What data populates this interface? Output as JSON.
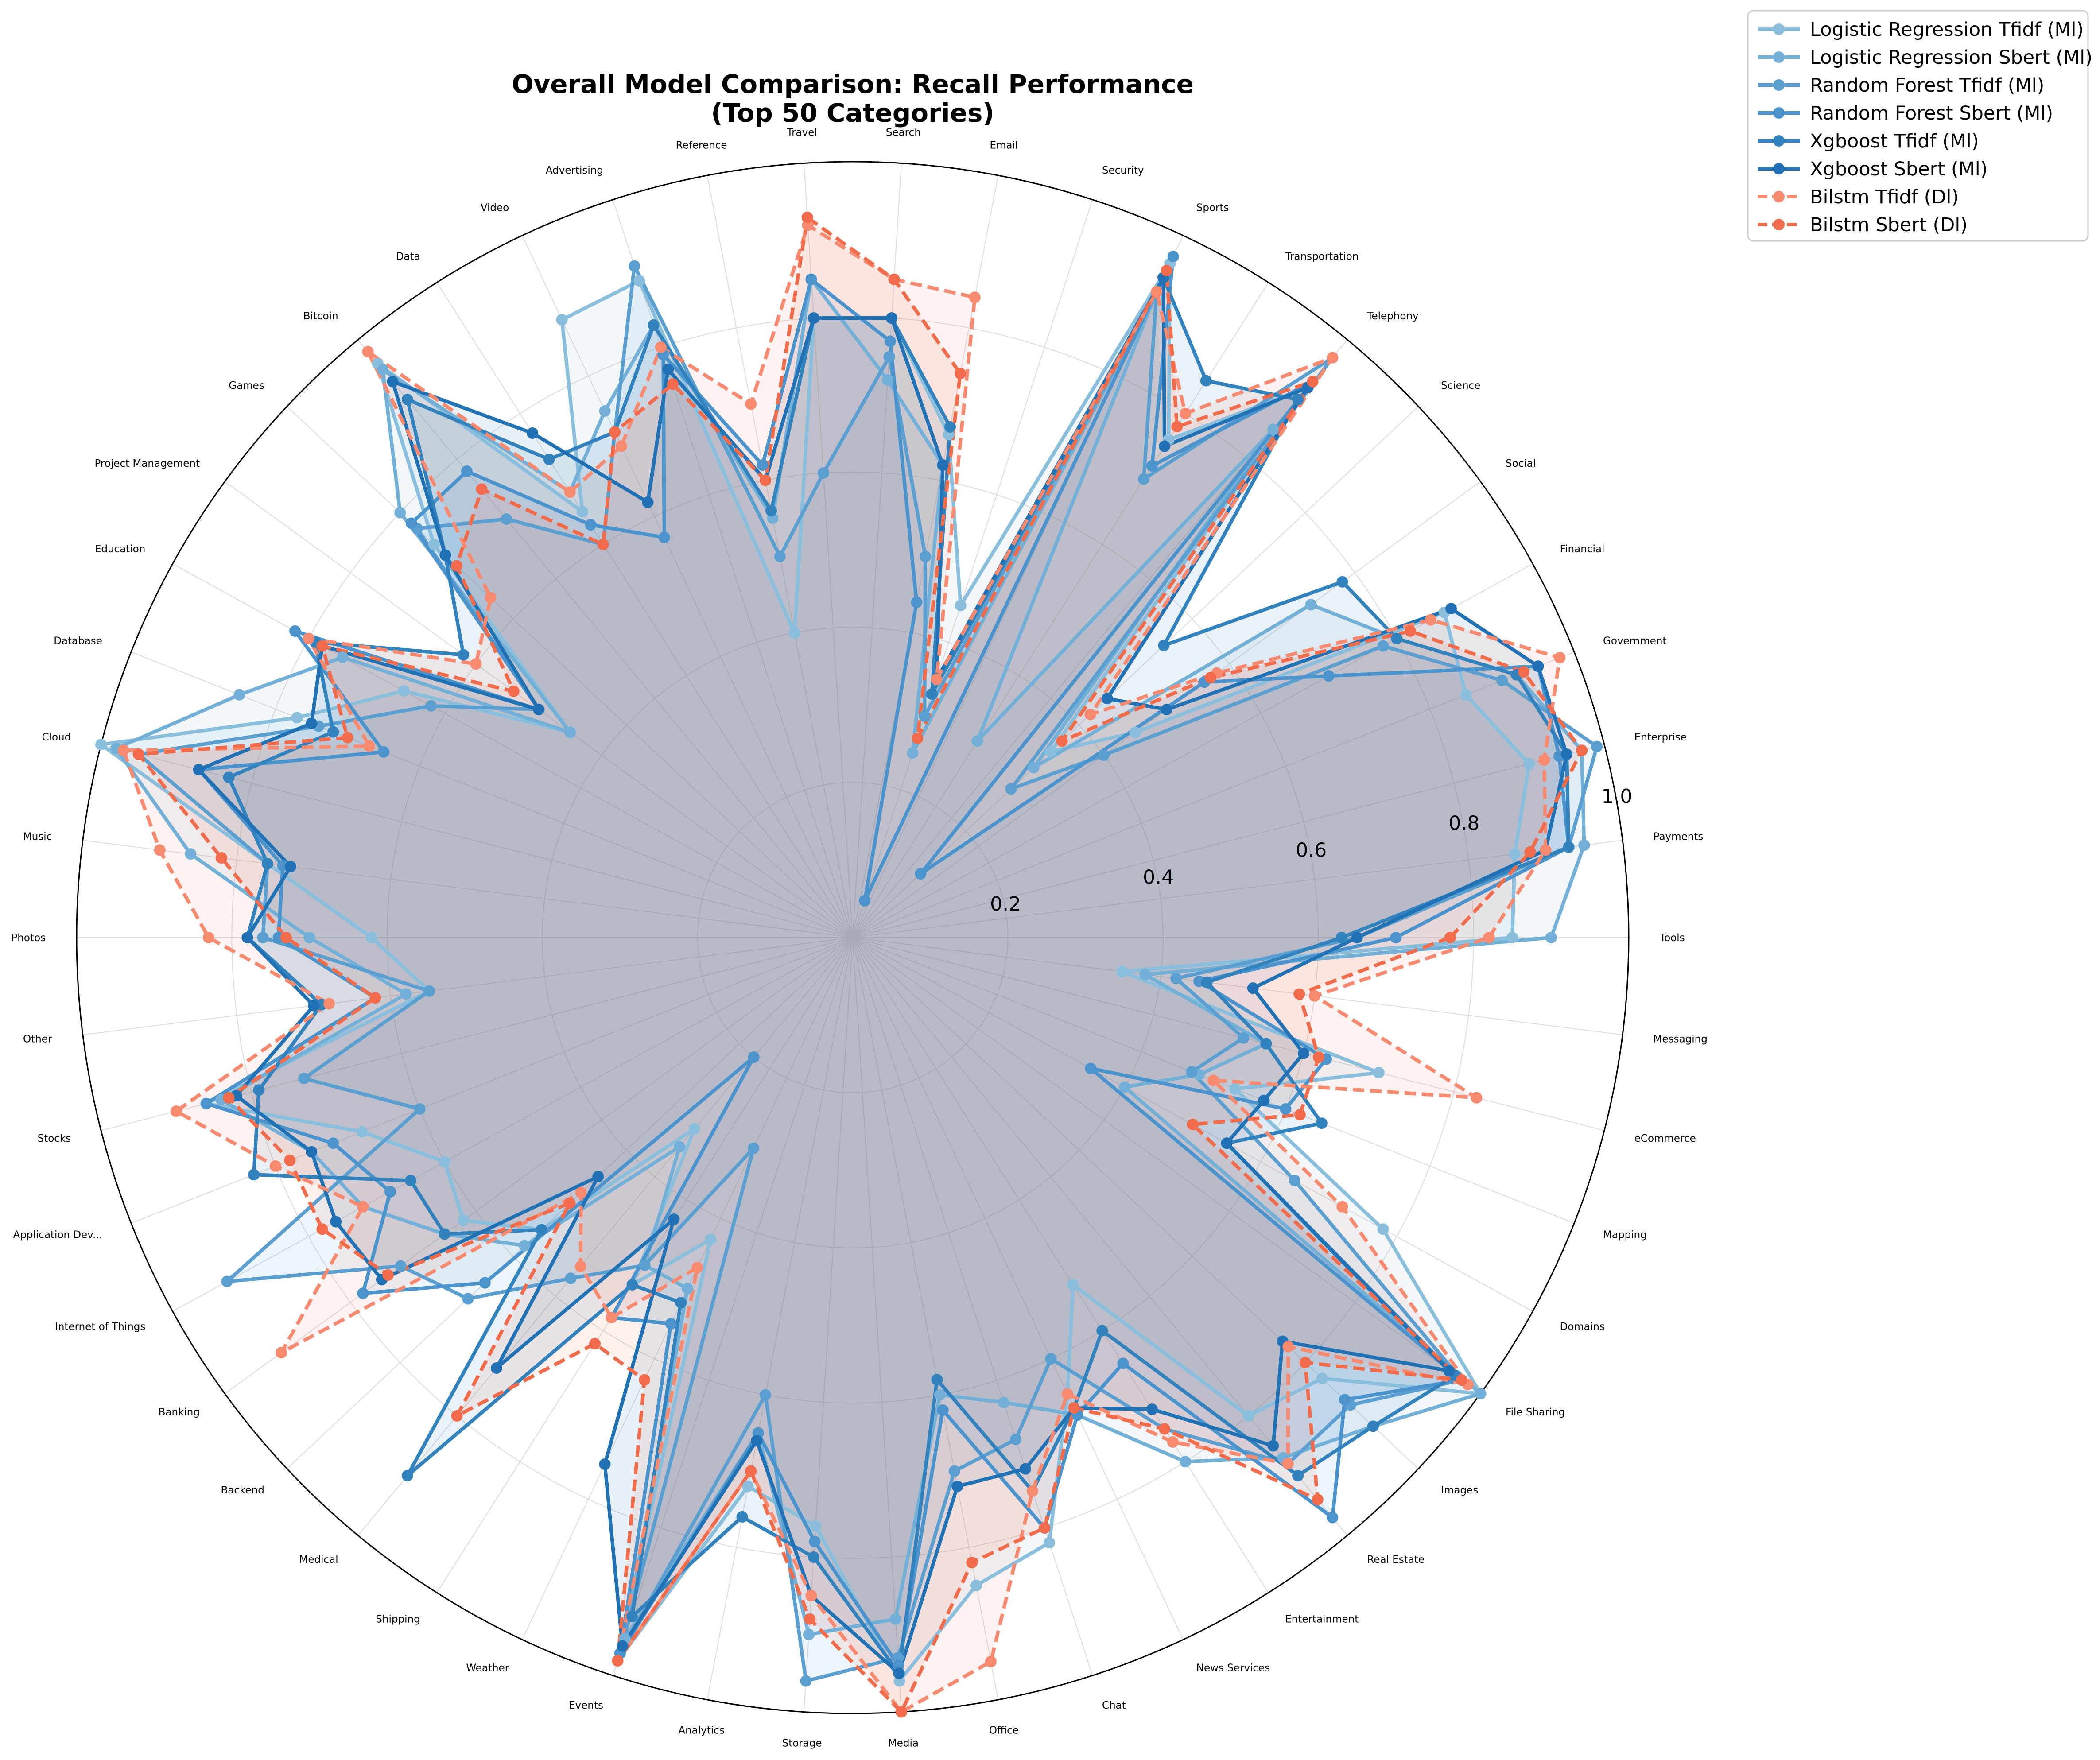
{
  "chart_data": {
    "type": "radar",
    "title": "Overall Model Comparison: Recall Performance",
    "subtitle": "(Top 50 Categories)",
    "categories": [
      "Tools",
      "Payments",
      "Enterprise",
      "Government",
      "Financial",
      "Social",
      "Science",
      "Telephony",
      "Transportation",
      "Sports",
      "Security",
      "Email",
      "Search",
      "Travel",
      "Reference",
      "Advertising",
      "Video",
      "Data",
      "Bitcoin",
      "Games",
      "Project Management",
      "Education",
      "Database",
      "Cloud",
      "Music",
      "Photos",
      "Other",
      "Stocks",
      "Application Dev...",
      "Internet of Things",
      "Banking",
      "Backend",
      "Medical",
      "Shipping",
      "Weather",
      "Events",
      "Analytics",
      "Storage",
      "Media",
      "Office",
      "Chat",
      "News Services",
      "Entertainment",
      "Real Estate",
      "Images",
      "File Sharing",
      "Domains",
      "Mapping",
      "eCommerce",
      "Messaging"
    ],
    "r_ticks": [
      "0.2",
      "0.4",
      "0.6",
      "0.8",
      "1.0"
    ],
    "rlim": [
      0,
      1.0
    ],
    "grid": true,
    "legend_position": "top-right outside",
    "series": [
      {
        "name": "Logistic Regression Tfidf (Ml)",
        "color": "#89bedc",
        "dashed": false,
        "values": [
          0.85,
          0.86,
          0.9,
          0.85,
          0.87,
          0.45,
          0.35,
          0.92,
          0.76,
          0.96,
          0.45,
          0.66,
          0.8,
          0.8,
          0.4,
          0.89,
          0.88,
          0.65,
          0.96,
          0.74,
          0.45,
          0.66,
          0.77,
          1.0,
          0.76,
          0.62,
          0.55,
          0.86,
          0.68,
          0.6,
          0.62,
          0.55,
          0.32,
          0.53,
          0.43,
          0.98,
          0.72,
          0.76,
          0.96,
          0.85,
          0.82,
          0.65,
          0.53,
          0.8,
          0.83,
          1.0,
          0.78,
          0.53,
          0.7,
          0.35
        ]
      },
      {
        "name": "Logistic Regression Sbert (Ml)",
        "color": "#73b0d8",
        "dashed": false,
        "values": [
          0.9,
          0.95,
          0.97,
          0.92,
          0.8,
          0.73,
          0.32,
          0.85,
          0.3,
          0.92,
          0.25,
          0.62,
          0.72,
          0.85,
          0.55,
          0.83,
          0.75,
          0.68,
          0.95,
          0.8,
          0.45,
          0.75,
          0.85,
          0.98,
          0.86,
          0.7,
          0.58,
          0.84,
          0.75,
          0.72,
          0.65,
          0.58,
          0.35,
          0.5,
          0.5,
          0.95,
          0.65,
          0.9,
          0.88,
          0.6,
          0.63,
          0.68,
          0.8,
          0.87,
          0.92,
          1.0,
          0.4,
          0.48,
          0.55,
          0.38
        ]
      },
      {
        "name": "Random Forest Tfidf (Ml)",
        "color": "#5b9fd1",
        "dashed": false,
        "values": [
          0.65,
          0.93,
          0.99,
          0.9,
          0.78,
          0.4,
          0.28,
          0.97,
          0.7,
          0.92,
          0.3,
          0.5,
          0.75,
          0.6,
          0.5,
          0.91,
          0.72,
          0.6,
          0.7,
          0.77,
          0.5,
          0.62,
          0.74,
          0.95,
          0.76,
          0.76,
          0.55,
          0.73,
          0.6,
          0.92,
          0.72,
          0.68,
          0.57,
          0.5,
          0.3,
          0.97,
          0.6,
          0.96,
          0.93,
          0.7,
          0.68,
          0.6,
          0.75,
          0.88,
          0.88,
          0.97,
          0.65,
          0.47,
          0.52,
          0.42
        ]
      },
      {
        "name": "Random Forest Sbert (Ml)",
        "color": "#4a93cc",
        "dashed": false,
        "values": [
          0.7,
          0.93,
          0.94,
          0.95,
          0.7,
          0.56,
          0.12,
          0.93,
          0.72,
          0.97,
          0.05,
          0.44,
          0.77,
          0.85,
          0.62,
          0.79,
          0.57,
          0.63,
          0.78,
          0.78,
          0.5,
          0.82,
          0.65,
          0.87,
          0.74,
          0.74,
          0.62,
          0.86,
          0.72,
          0.68,
          0.78,
          0.65,
          0.2,
          0.58,
          0.55,
          0.97,
          0.65,
          0.78,
          0.94,
          0.62,
          0.8,
          0.68,
          0.65,
          0.97,
          0.87,
          0.97,
          0.35,
          0.6,
          0.63,
          0.45
        ]
      },
      {
        "name": "Xgboost Tfidf (Ml)",
        "color": "#3182bd",
        "dashed": false,
        "values": [
          0.63,
          0.93,
          0.95,
          0.92,
          0.8,
          0.78,
          0.55,
          0.9,
          0.85,
          0.94,
          0.33,
          0.67,
          0.8,
          0.8,
          0.56,
          0.83,
          0.72,
          0.73,
          0.9,
          0.72,
          0.62,
          0.79,
          0.72,
          0.83,
          0.76,
          0.78,
          0.69,
          0.79,
          0.83,
          0.65,
          0.65,
          0.55,
          0.9,
          0.53,
          0.52,
          0.92,
          0.76,
          0.8,
          0.95,
          0.58,
          0.75,
          0.67,
          0.6,
          0.9,
          0.92,
          0.96,
          0.55,
          0.65,
          0.55,
          0.46
        ]
      },
      {
        "name": "Xgboost Sbert (Ml)",
        "color": "#2171b5",
        "dashed": false,
        "values": [
          0.65,
          0.9,
          0.95,
          0.95,
          0.88,
          0.5,
          0.45,
          0.92,
          0.75,
          0.94,
          0.35,
          0.62,
          0.8,
          0.8,
          0.6,
          0.77,
          0.62,
          0.77,
          0.93,
          0.72,
          0.5,
          0.78,
          0.75,
          0.87,
          0.73,
          0.78,
          0.7,
          0.82,
          0.75,
          0.76,
          0.75,
          0.45,
          0.72,
          0.43,
          0.75,
          0.96,
          0.66,
          0.85,
          0.95,
          0.72,
          0.72,
          0.67,
          0.72,
          0.85,
          0.76,
          0.95,
          0.55,
          0.57,
          0.6,
          0.52
        ]
      },
      {
        "name": "Bilstm Tfidf (Dl)",
        "color": "#f9896f",
        "dashed": true,
        "values": [
          0.82,
          0.9,
          0.92,
          0.98,
          0.85,
          0.58,
          0.42,
          0.97,
          0.8,
          0.92,
          0.35,
          0.84,
          0.85,
          0.92,
          0.7,
          0.8,
          0.7,
          0.68,
          0.98,
          0.64,
          0.6,
          0.8,
          0.67,
          0.97,
          0.9,
          0.83,
          0.68,
          0.9,
          0.8,
          0.72,
          0.91,
          0.48,
          0.55,
          0.58,
          0.47,
          0.98,
          0.7,
          0.85,
          1.0,
          0.95,
          0.75,
          0.65,
          0.77,
          0.88,
          0.77,
          0.98,
          0.72,
          0.5,
          0.83,
          0.6
        ]
      },
      {
        "name": "Bilstm Sbert (Dl)",
        "color": "#f26b4a",
        "dashed": true,
        "values": [
          0.77,
          0.88,
          0.97,
          0.93,
          0.82,
          0.57,
          0.37,
          0.93,
          0.78,
          0.95,
          0.27,
          0.74,
          0.85,
          0.93,
          0.6,
          0.75,
          0.72,
          0.6,
          0.75,
          0.7,
          0.54,
          0.78,
          0.7,
          0.95,
          0.82,
          0.73,
          0.62,
          0.83,
          0.78,
          0.78,
          0.74,
          0.5,
          0.8,
          0.62,
          0.63,
          0.98,
          0.7,
          0.88,
          1.0,
          0.82,
          0.8,
          0.67,
          0.75,
          0.94,
          0.8,
          0.97,
          0.5,
          0.62,
          0.62,
          0.58
        ]
      }
    ]
  }
}
